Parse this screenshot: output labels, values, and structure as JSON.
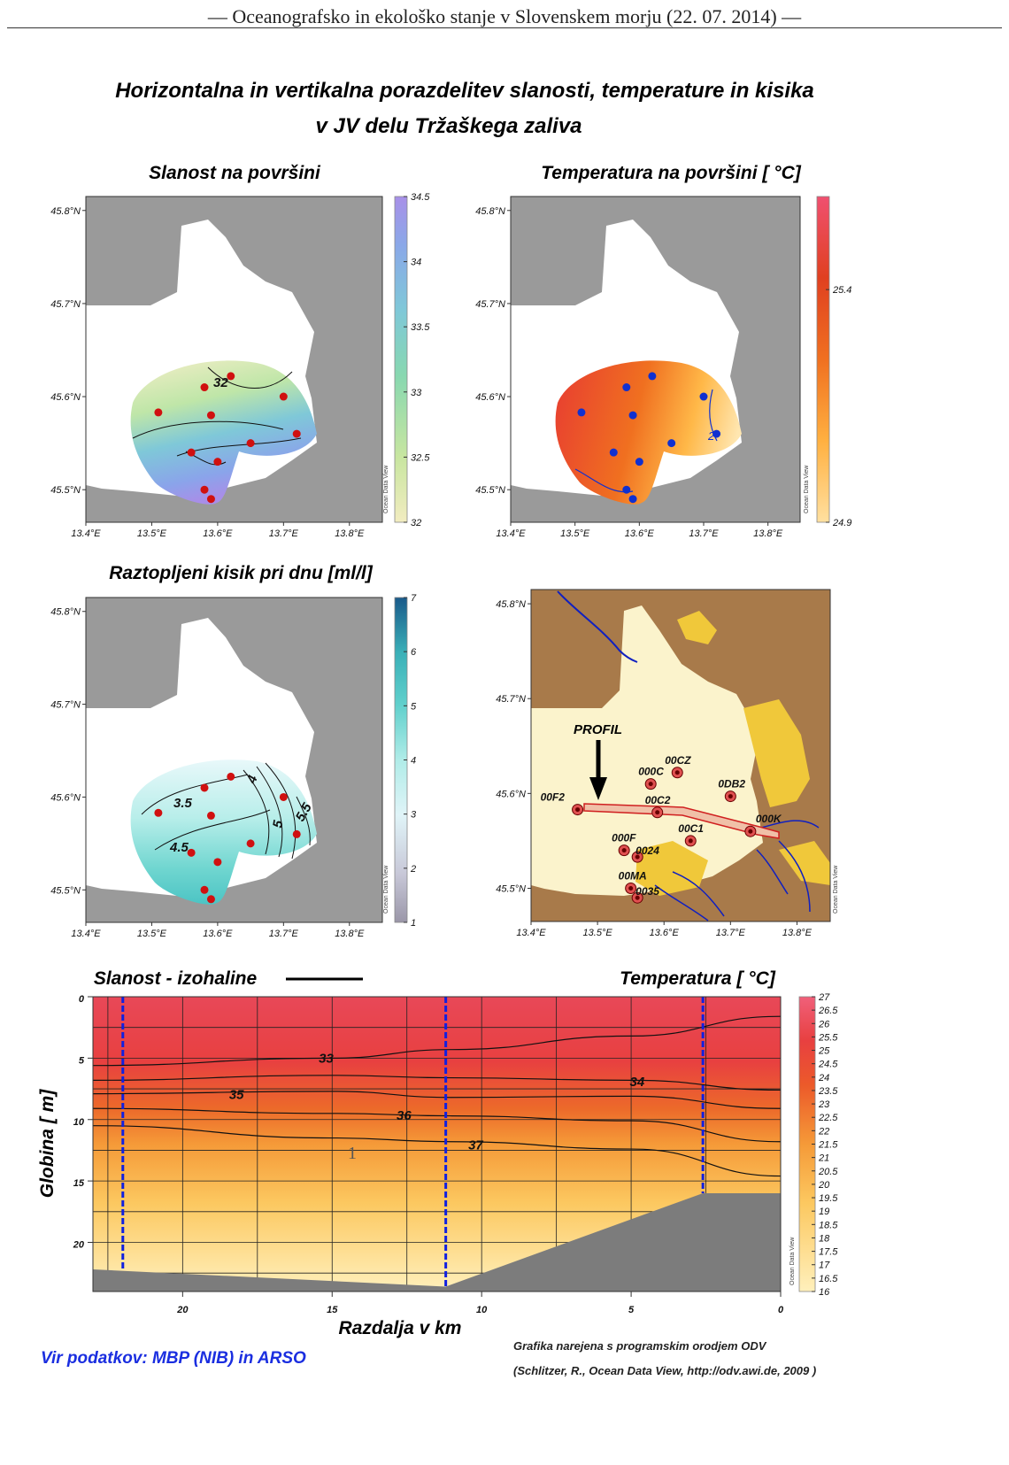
{
  "page": {
    "header": "— Oceanografsko in ekološko stanje v Slovenskem morju (22. 07. 2014) —"
  },
  "figure": {
    "title_line1": "Horizontalna in vertikalna porazdelitev slanosti, temperature in kisika",
    "title_line2": "v JV delu Tržaškega zaliva",
    "source": "Vir podatkov: MBP (NIB) in ARSO",
    "credit_line1": "Grafika narejena s programskim orodjem ODV",
    "credit_line2": "(Schlitzer, R., Ocean Data View, http://odv.awi.de, 2009 )",
    "odv_watermark": "Ocean Data View",
    "colors": {
      "land": "#9a9a9a",
      "station_red": "#d01010",
      "station_blue": "#1030d0",
      "profile_blue": "#1020e0"
    }
  },
  "chart_data": [
    {
      "type": "heatmap",
      "title": "Slanost na površini",
      "lon_ticks": [
        "13.4°E",
        "13.5°E",
        "13.6°E",
        "13.7°E",
        "13.8°E"
      ],
      "lat_ticks": [
        "45.8°N",
        "45.7°N",
        "45.6°N",
        "45.5°N"
      ],
      "colorbar": {
        "min": 32,
        "max": 34.5,
        "ticks": [
          "34.5",
          "34",
          "33.5",
          "33",
          "32.5",
          "32"
        ],
        "colors": [
          "#f2ecc0",
          "#c8e6a0",
          "#88d8b0",
          "#7fc8d8",
          "#8aa8e8",
          "#a890e8"
        ]
      },
      "contours": [
        "32"
      ],
      "stations_lonlat": [
        [
          13.51,
          45.583
        ],
        [
          13.58,
          45.61
        ],
        [
          13.62,
          45.622
        ],
        [
          13.59,
          45.58
        ],
        [
          13.7,
          45.6
        ],
        [
          13.72,
          45.56
        ],
        [
          13.65,
          45.55
        ],
        [
          13.56,
          45.54
        ],
        [
          13.6,
          45.53
        ],
        [
          13.58,
          45.5
        ],
        [
          13.59,
          45.49
        ]
      ]
    },
    {
      "type": "heatmap",
      "title": "Temperatura na površini [ °C]",
      "lon_ticks": [
        "13.4°E",
        "13.5°E",
        "13.6°E",
        "13.7°E",
        "13.8°E"
      ],
      "lat_ticks": [
        "45.8°N",
        "45.7°N",
        "45.6°N",
        "45.5°N"
      ],
      "colorbar": {
        "min": 24.9,
        "max": 25.6,
        "ticks": [
          "25.4",
          "24.9"
        ],
        "colors": [
          "#ffe0a0",
          "#ffb040",
          "#f07020",
          "#e04020",
          "#f05070"
        ]
      },
      "contours": [
        "2"
      ],
      "stations_lonlat": [
        [
          13.51,
          45.583
        ],
        [
          13.58,
          45.61
        ],
        [
          13.62,
          45.622
        ],
        [
          13.59,
          45.58
        ],
        [
          13.7,
          45.6
        ],
        [
          13.72,
          45.56
        ],
        [
          13.65,
          45.55
        ],
        [
          13.56,
          45.54
        ],
        [
          13.6,
          45.53
        ],
        [
          13.58,
          45.5
        ],
        [
          13.59,
          45.49
        ]
      ]
    },
    {
      "type": "heatmap",
      "title": "Raztopljeni kisik pri dnu [ml/l]",
      "lon_ticks": [
        "13.4°E",
        "13.5°E",
        "13.6°E",
        "13.7°E",
        "13.8°E"
      ],
      "lat_ticks": [
        "45.8°N",
        "45.7°N",
        "45.6°N",
        "45.5°N"
      ],
      "colorbar": {
        "min": 1,
        "max": 7,
        "ticks": [
          "7",
          "6",
          "5",
          "4",
          "3",
          "2",
          "1"
        ],
        "colors": [
          "#9a96a8",
          "#c8c8d8",
          "#e0f4f8",
          "#b0ece8",
          "#60d0cc",
          "#3ab0b8",
          "#1a5a8a"
        ]
      },
      "contours": [
        "3.5",
        "4",
        "4.5",
        "5",
        "5.5",
        "3.5"
      ],
      "stations_lonlat": [
        [
          13.51,
          45.583
        ],
        [
          13.58,
          45.61
        ],
        [
          13.62,
          45.622
        ],
        [
          13.59,
          45.58
        ],
        [
          13.7,
          45.6
        ],
        [
          13.72,
          45.56
        ],
        [
          13.65,
          45.55
        ],
        [
          13.56,
          45.54
        ],
        [
          13.6,
          45.53
        ],
        [
          13.58,
          45.5
        ],
        [
          13.59,
          45.49
        ]
      ]
    },
    {
      "type": "scatter",
      "title": "",
      "lon_ticks": [
        "13.4°E",
        "13.5°E",
        "13.6°E",
        "13.7°E",
        "13.8°E"
      ],
      "lat_ticks": [
        "45.8°N",
        "45.7°N",
        "45.6°N",
        "45.5°N"
      ],
      "annotation": "PROFIL",
      "stations": [
        {
          "name": "00F2",
          "lon": 13.47,
          "lat": 45.583
        },
        {
          "name": "000C",
          "lon": 13.58,
          "lat": 45.61
        },
        {
          "name": "00CZ",
          "lon": 13.62,
          "lat": 45.622
        },
        {
          "name": "00C2",
          "lon": 13.59,
          "lat": 45.58
        },
        {
          "name": "0DB2",
          "lon": 13.7,
          "lat": 45.597
        },
        {
          "name": "000K",
          "lon": 13.73,
          "lat": 45.56
        },
        {
          "name": "00C1",
          "lon": 13.64,
          "lat": 45.55
        },
        {
          "name": "000F",
          "lon": 13.54,
          "lat": 45.54
        },
        {
          "name": "0024",
          "lon": 13.56,
          "lat": 45.533
        },
        {
          "name": "00MA",
          "lon": 13.55,
          "lat": 45.5
        },
        {
          "name": "0035",
          "lon": 13.56,
          "lat": 45.49
        }
      ]
    },
    {
      "type": "heatmap",
      "title": "Slanost - izohaline",
      "title_right": "Temperatura  [ °C]",
      "xlabel": "Razdalja v km",
      "ylabel": "Globina  [ m]",
      "xlim": [
        23,
        0
      ],
      "ylim": [
        0,
        24
      ],
      "x_ticks": [
        "20",
        "15",
        "10",
        "5",
        "0"
      ],
      "y_ticks": [
        "0",
        "5",
        "10",
        "15",
        "20"
      ],
      "colorbar": {
        "min": 16,
        "max": 27,
        "ticks": [
          "27",
          "26.5",
          "26",
          "25.5",
          "25",
          "24.5",
          "24",
          "23.5",
          "23",
          "22.5",
          "22",
          "21.5",
          "21",
          "20.5",
          "20",
          "19.5",
          "19",
          "18.5",
          "18",
          "17.5",
          "17",
          "16.5",
          "16"
        ]
      },
      "isohaline_labels": [
        "33",
        "34",
        "35",
        "36",
        "37"
      ],
      "isohalines": [
        {
          "label": "33",
          "x": [
            23,
            15,
            11,
            5,
            0
          ],
          "y": [
            5.6,
            5.0,
            4.3,
            3.2,
            1.6
          ]
        },
        {
          "label": "34",
          "x": [
            23,
            15,
            11,
            5,
            0
          ],
          "y": [
            6.8,
            6.4,
            6.6,
            6.8,
            7.6
          ]
        },
        {
          "label": "35",
          "x": [
            23,
            15,
            11,
            5,
            0
          ],
          "y": [
            7.9,
            7.7,
            8.2,
            8.1,
            9.1
          ]
        },
        {
          "label": "36",
          "x": [
            23,
            15,
            11,
            5,
            0
          ],
          "y": [
            9.1,
            9.5,
            9.7,
            10.1,
            11.8
          ]
        },
        {
          "label": "37",
          "x": [
            23,
            15,
            11,
            5,
            0
          ],
          "y": [
            10.5,
            11.5,
            11.8,
            12.4,
            14.6
          ]
        }
      ],
      "annotation": "1",
      "profile_stations_km": [
        22,
        11.2,
        2.6
      ],
      "bottom_depth": {
        "x": [
          23,
          11.2,
          2.6,
          0
        ],
        "y": [
          22.2,
          23.6,
          16.0,
          16.0
        ]
      }
    }
  ]
}
